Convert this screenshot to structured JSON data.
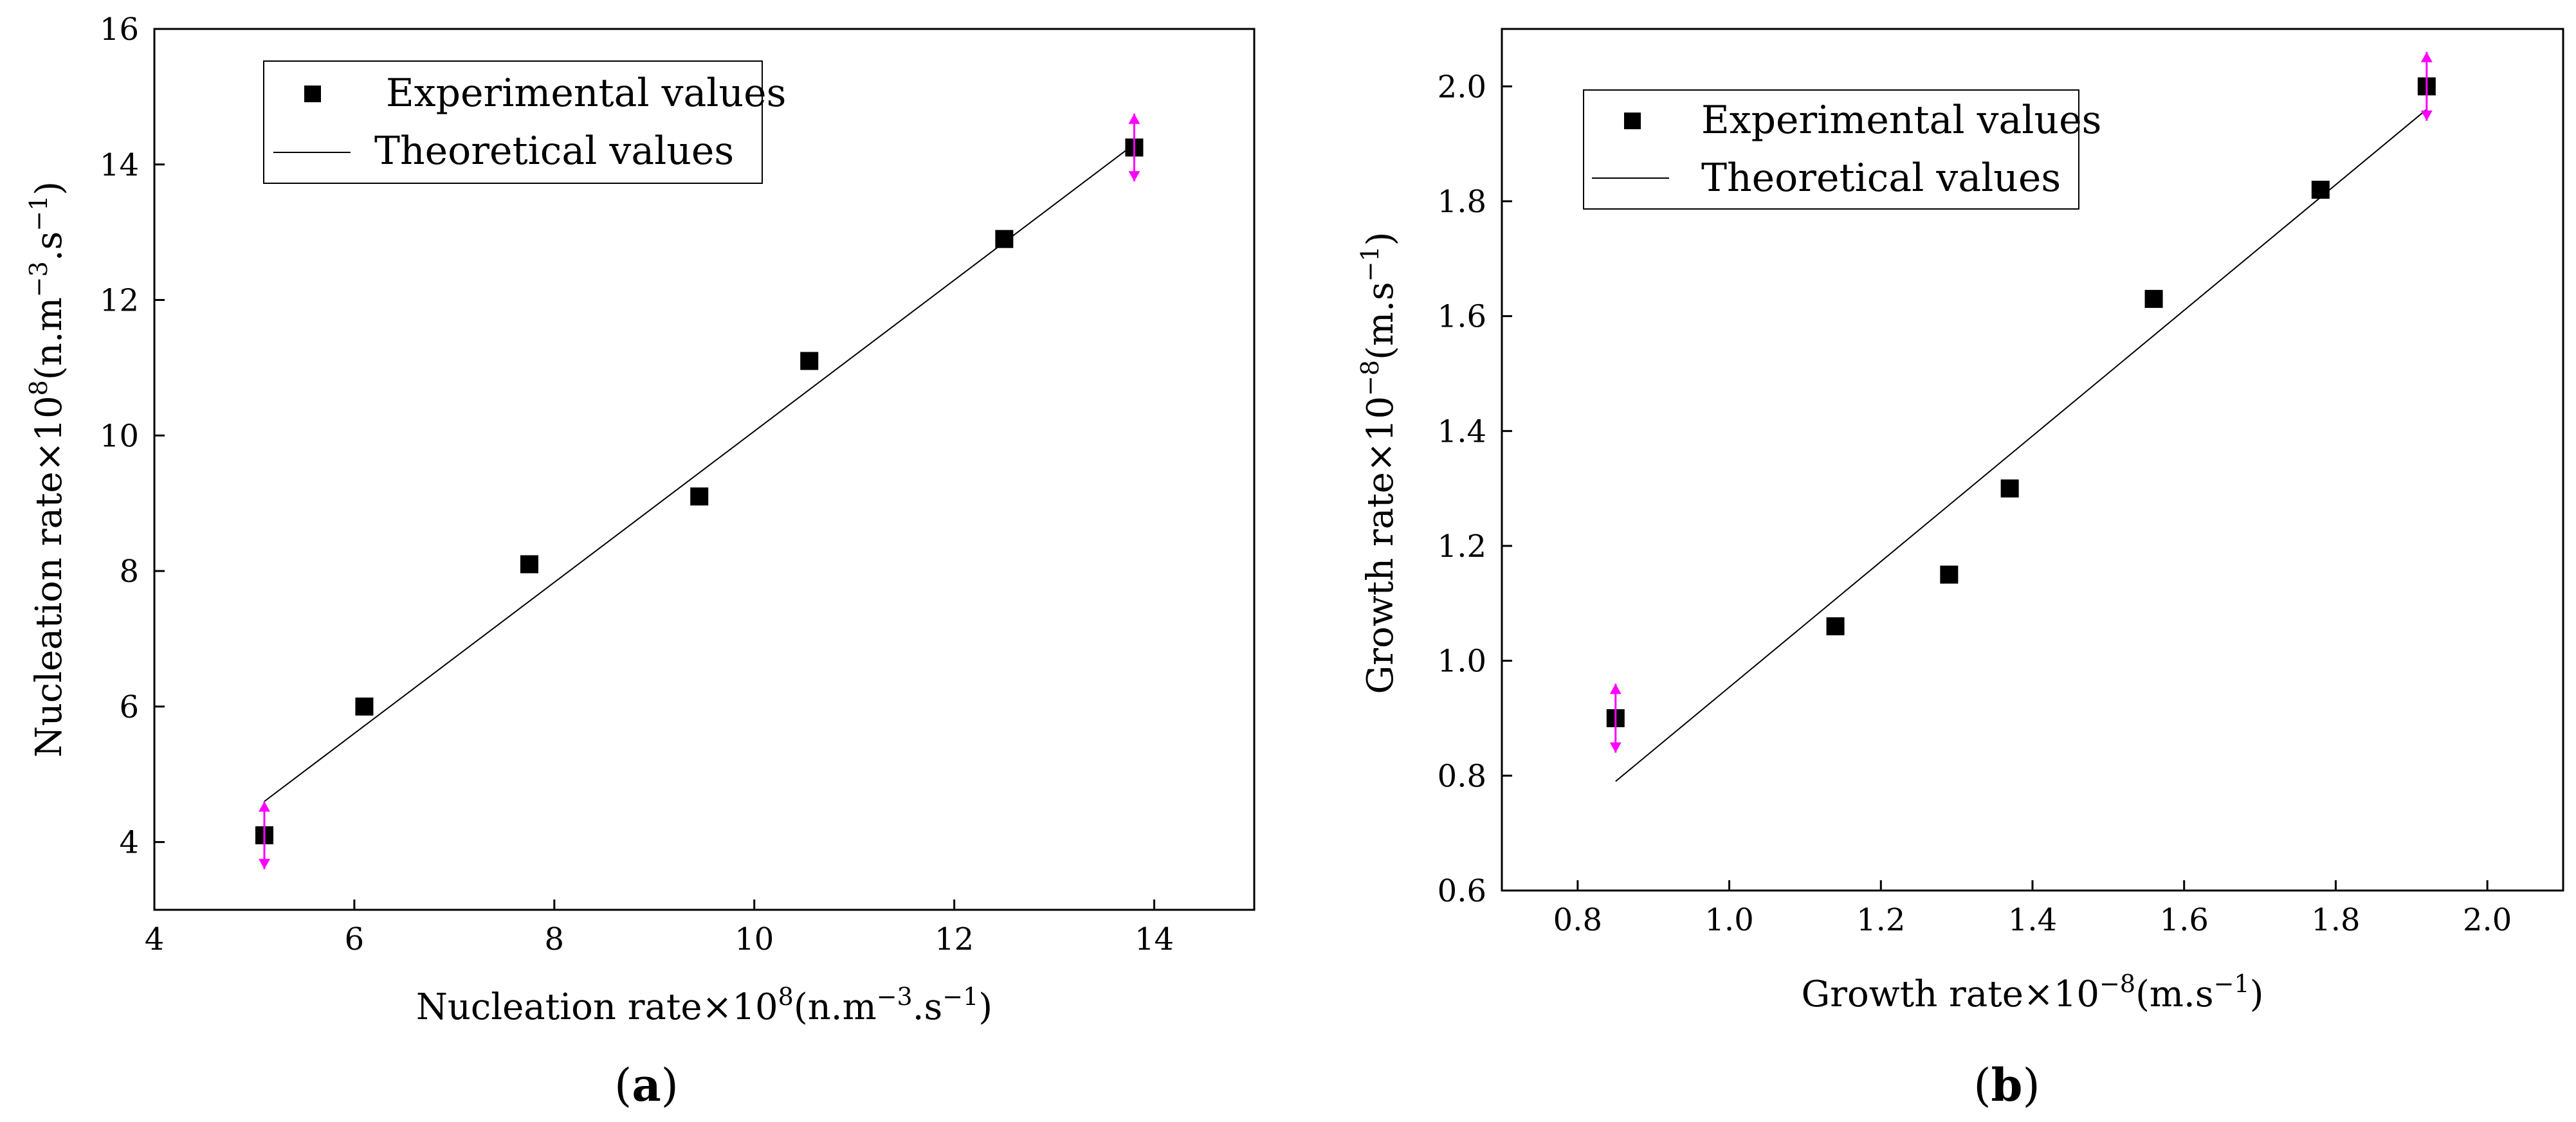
{
  "chart_data": [
    {
      "type": "scatter",
      "panel_label": "(a)",
      "xlabel": "Nucleation rate×10^8(n.m^−3.s^−1)",
      "ylabel": "Nucleation rate×10^8(n.m^−3.s^−1)",
      "xlim": [
        4,
        15
      ],
      "ylim": [
        3,
        16
      ],
      "xticks": [
        4,
        6,
        8,
        10,
        12,
        14
      ],
      "yticks": [
        4,
        6,
        8,
        10,
        12,
        14,
        16
      ],
      "legend_position": "top-left",
      "series": [
        {
          "name": "Experimental values",
          "kind": "points",
          "x": [
            5.1,
            6.1,
            7.75,
            9.45,
            10.55,
            12.5,
            13.8
          ],
          "y": [
            4.1,
            6.0,
            8.1,
            9.1,
            11.1,
            12.9,
            14.25
          ]
        },
        {
          "name": "Theoretical values",
          "kind": "line",
          "x": [
            5.1,
            13.8
          ],
          "y": [
            4.6,
            14.3
          ]
        }
      ],
      "error_markers": [
        {
          "x": 5.1,
          "y_low": 3.6,
          "y_high": 4.6
        },
        {
          "x": 13.8,
          "y_low": 13.75,
          "y_high": 14.75
        }
      ]
    },
    {
      "type": "scatter",
      "panel_label": "(b)",
      "xlabel": "Growth rate×10^−8(m.s^−1)",
      "ylabel": "Growth rate×10^−8(m.s^−1)",
      "xlim": [
        0.7,
        2.1
      ],
      "ylim": [
        0.6,
        2.1
      ],
      "xticks": [
        0.8,
        1.0,
        1.2,
        1.4,
        1.6,
        1.8,
        2.0
      ],
      "yticks": [
        0.6,
        0.8,
        1.0,
        1.2,
        1.4,
        1.6,
        1.8,
        2.0
      ],
      "legend_position": "top-left",
      "series": [
        {
          "name": "Experimental values",
          "kind": "points",
          "x": [
            0.85,
            1.14,
            1.29,
            1.37,
            1.56,
            1.78,
            1.92
          ],
          "y": [
            0.9,
            1.06,
            1.15,
            1.3,
            1.63,
            1.82,
            2.0
          ]
        },
        {
          "name": "Theoretical values",
          "kind": "line",
          "x": [
            0.85,
            1.92
          ],
          "y": [
            0.79,
            1.96
          ]
        }
      ],
      "error_markers": [
        {
          "x": 0.85,
          "y_low": 0.84,
          "y_high": 0.96
        },
        {
          "x": 1.92,
          "y_low": 1.94,
          "y_high": 2.06
        }
      ]
    }
  ],
  "colors": {
    "marker": "#000000",
    "line": "#000000",
    "error": "#ff00ff"
  }
}
